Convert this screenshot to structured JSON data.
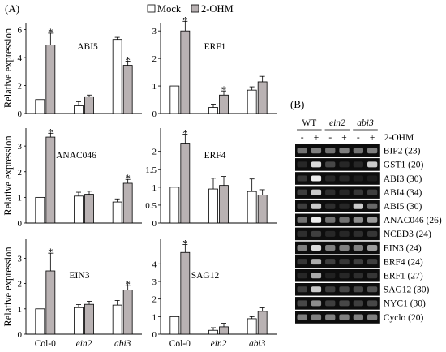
{
  "panel_a_label": "(A)",
  "panel_b_label": "(B)",
  "legend": {
    "mock": "Mock",
    "treated": "2-OHM",
    "mock_color": "#ffffff",
    "treated_color": "#b9b2b3"
  },
  "ylabel": "Relative expression",
  "star": "*",
  "groups": [
    "Col-0",
    "ein2",
    "abi3"
  ],
  "chart_data": [
    {
      "type": "bar",
      "title": "ABI5",
      "ylabel": "Relative expression",
      "ylim": [
        0,
        6.5
      ],
      "yticks": [
        0,
        2,
        4,
        6
      ],
      "categories": [
        "Col-0",
        "ein2",
        "abi3"
      ],
      "series": [
        {
          "name": "Mock",
          "values": [
            1.0,
            0.55,
            5.3
          ],
          "errors": [
            0.0,
            0.3,
            0.15
          ]
        },
        {
          "name": "2-OHM",
          "values": [
            4.9,
            1.2,
            3.45
          ],
          "errors": [
            0.85,
            0.12,
            0.3
          ]
        }
      ],
      "significant": [
        [
          false,
          false,
          false
        ],
        [
          true,
          false,
          true
        ]
      ]
    },
    {
      "type": "bar",
      "title": "ERF1",
      "ylabel": "",
      "ylim": [
        0,
        3.3
      ],
      "yticks": [
        0,
        1,
        2,
        3
      ],
      "categories": [
        "Col-0",
        "ein2",
        "abi3"
      ],
      "series": [
        {
          "name": "Mock",
          "values": [
            1.0,
            0.22,
            0.85
          ],
          "errors": [
            0.0,
            0.12,
            0.12
          ]
        },
        {
          "name": "2-OHM",
          "values": [
            3.0,
            0.67,
            1.15
          ],
          "errors": [
            0.35,
            0.15,
            0.2
          ]
        }
      ],
      "significant": [
        [
          false,
          false,
          false
        ],
        [
          true,
          true,
          false
        ]
      ]
    },
    {
      "type": "bar",
      "title": "ANAC046",
      "ylabel": "Relative expression",
      "ylim": [
        0,
        3.7
      ],
      "yticks": [
        0,
        1,
        2,
        3
      ],
      "categories": [
        "Col-0",
        "ein2",
        "abi3"
      ],
      "series": [
        {
          "name": "Mock",
          "values": [
            1.0,
            1.05,
            0.82
          ],
          "errors": [
            0.0,
            0.15,
            0.12
          ]
        },
        {
          "name": "2-OHM",
          "values": [
            3.35,
            1.12,
            1.55
          ],
          "errors": [
            0.15,
            0.12,
            0.15
          ]
        }
      ],
      "significant": [
        [
          false,
          false,
          false
        ],
        [
          true,
          false,
          true
        ]
      ]
    },
    {
      "type": "bar",
      "title": "ERF4",
      "ylabel": "",
      "ylim": [
        0,
        2.65
      ],
      "yticks": [
        0,
        0.5,
        1,
        1.5,
        2
      ],
      "categories": [
        "Col-0",
        "ein2",
        "abi3"
      ],
      "series": [
        {
          "name": "Mock",
          "values": [
            1.0,
            0.95,
            0.88
          ],
          "errors": [
            0.0,
            0.3,
            0.35
          ]
        },
        {
          "name": "2-OHM",
          "values": [
            2.23,
            1.05,
            0.78
          ],
          "errors": [
            0.25,
            0.25,
            0.15
          ]
        }
      ],
      "significant": [
        [
          false,
          false,
          false
        ],
        [
          true,
          false,
          false
        ]
      ]
    },
    {
      "type": "bar",
      "title": "EIN3",
      "ylabel": "Relative expression",
      "ylim": [
        0,
        3.75
      ],
      "yticks": [
        0,
        1,
        2,
        3
      ],
      "categories": [
        "Col-0",
        "ein2",
        "abi3"
      ],
      "series": [
        {
          "name": "Mock",
          "values": [
            1.0,
            1.05,
            1.15
          ],
          "errors": [
            0.0,
            0.12,
            0.18
          ]
        },
        {
          "name": "2-OHM",
          "values": [
            2.5,
            1.18,
            1.75
          ],
          "errors": [
            0.7,
            0.12,
            0.18
          ]
        }
      ],
      "significant": [
        [
          false,
          false,
          false
        ],
        [
          true,
          false,
          true
        ]
      ]
    },
    {
      "type": "bar",
      "title": "SAG12",
      "ylabel": "",
      "ylim": [
        0,
        5.4
      ],
      "yticks": [
        0,
        1,
        2,
        3,
        4
      ],
      "categories": [
        "Col-0",
        "ein2",
        "abi3"
      ],
      "series": [
        {
          "name": "Mock",
          "values": [
            1.0,
            0.22,
            0.88
          ],
          "errors": [
            0.0,
            0.15,
            0.12
          ]
        },
        {
          "name": "2-OHM",
          "values": [
            4.65,
            0.42,
            1.3
          ],
          "errors": [
            0.45,
            0.2,
            0.2
          ]
        }
      ],
      "significant": [
        [
          false,
          false,
          false
        ],
        [
          true,
          false,
          false
        ]
      ]
    }
  ],
  "gel": {
    "genotypes": [
      "WT",
      "ein2",
      "abi3"
    ],
    "treatment_signs": [
      "-",
      "+",
      "-",
      "+",
      "-",
      "+"
    ],
    "treatment_label": "2-OHM",
    "rows": [
      {
        "label": "BIP2 (23)",
        "intensity": [
          0.55,
          0.6,
          0.55,
          0.6,
          0.55,
          0.6
        ]
      },
      {
        "label": "GST1 (20)",
        "intensity": [
          0.15,
          0.9,
          0.35,
          0.15,
          0.15,
          0.85
        ]
      },
      {
        "label": "ABI3 (30)",
        "intensity": [
          0.25,
          0.95,
          0.15,
          0.15,
          0.05,
          0.05
        ]
      },
      {
        "label": "ABI4 (34)",
        "intensity": [
          0.3,
          0.85,
          0.2,
          0.15,
          0.25,
          0.3
        ]
      },
      {
        "label": "ABI5 (30)",
        "intensity": [
          0.3,
          0.85,
          0.2,
          0.15,
          0.85,
          0.5
        ]
      },
      {
        "label": "ANAC046 (26)",
        "intensity": [
          0.55,
          0.95,
          0.55,
          0.55,
          0.65,
          0.7
        ]
      },
      {
        "label": "NCED3 (24)",
        "intensity": [
          0.2,
          0.3,
          0.15,
          0.15,
          0.2,
          0.25
        ]
      },
      {
        "label": "EIN3 (24)",
        "intensity": [
          0.6,
          0.9,
          0.6,
          0.6,
          0.6,
          0.7
        ]
      },
      {
        "label": "ERF4 (24)",
        "intensity": [
          0.25,
          0.75,
          0.3,
          0.25,
          0.3,
          0.3
        ]
      },
      {
        "label": "ERF1 (27)",
        "intensity": [
          0.15,
          0.75,
          0.1,
          0.15,
          0.2,
          0.25
        ]
      },
      {
        "label": "SAG12 (30)",
        "intensity": [
          0.3,
          0.85,
          0.3,
          0.35,
          0.35,
          0.4
        ]
      },
      {
        "label": "NYC1 (30)",
        "intensity": [
          0.35,
          0.65,
          0.3,
          0.35,
          0.3,
          0.35
        ]
      },
      {
        "label": "Cyclo (20)",
        "intensity": [
          0.6,
          0.6,
          0.6,
          0.6,
          0.6,
          0.6
        ]
      }
    ]
  }
}
